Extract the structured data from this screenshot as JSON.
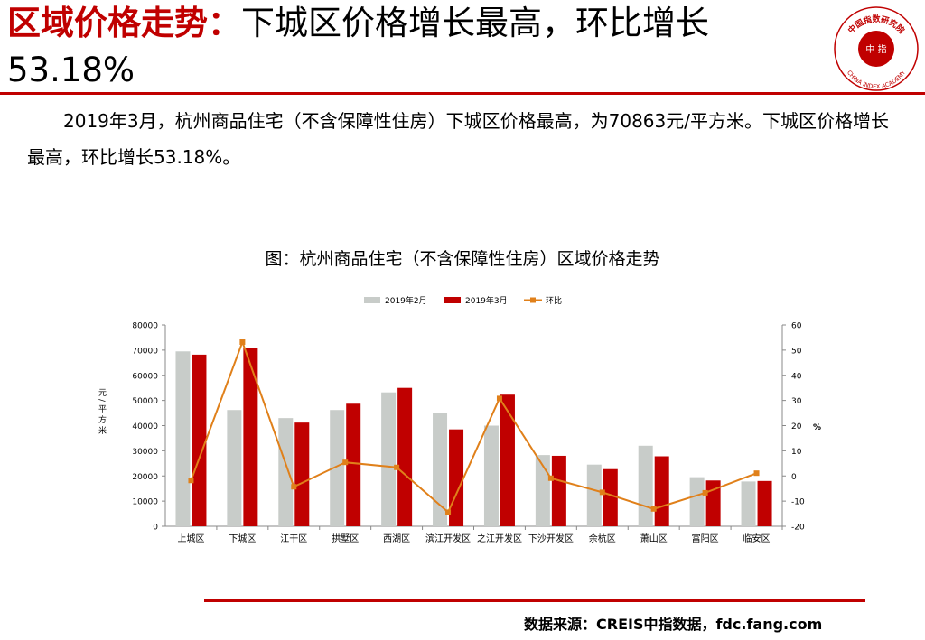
{
  "header": {
    "title_bold": "区域价格走势：",
    "title_rest": "下城区价格增长最高，环比增长",
    "title_line2": "53.18%"
  },
  "logo": {
    "text": "中国指数研究院",
    "center_text": "中 指",
    "english": "CHINA INDEX ACADEMY"
  },
  "summary": {
    "text": "2019年3月，杭州商品住宅（不含保障性住房）下城区价格最高，为70863元/平方米。下城区价格增长最高，环比增长53.18%。"
  },
  "source": {
    "text": "数据来源：CREIS中指数据，fdc.fang.com"
  },
  "colors": {
    "accent": "#c00000",
    "feb_bar": "#c8ccc9",
    "mar_bar": "#c00000",
    "mom_line": "#e0801a"
  },
  "chart_data": {
    "type": "bar",
    "title": "图：杭州商品住宅（不含保障性住房）区域价格走势",
    "categories": [
      "上城区",
      "下城区",
      "江干区",
      "拱墅区",
      "西湖区",
      "滨江开发区",
      "之江开发区",
      "下沙开发区",
      "余杭区",
      "萧山区",
      "富阳区",
      "临安区"
    ],
    "series": [
      {
        "name": "2019年2月",
        "type": "bar",
        "axis": "left",
        "values": [
          69500,
          46200,
          43000,
          46200,
          53200,
          45000,
          40000,
          28300,
          24500,
          32000,
          19500,
          17800
        ]
      },
      {
        "name": "2019年3月",
        "type": "bar",
        "axis": "left",
        "values": [
          68200,
          70863,
          41200,
          48700,
          55000,
          38500,
          52300,
          28000,
          22700,
          27800,
          18200,
          18000
        ]
      },
      {
        "name": "环比",
        "type": "line",
        "axis": "right",
        "values": [
          -1.8,
          53.18,
          -4.3,
          5.4,
          3.4,
          -14.4,
          30.8,
          -0.9,
          -6.5,
          -13.1,
          -6.7,
          1.1
        ]
      }
    ],
    "ylabel": "元/平方米",
    "y2label": "%",
    "ylim": [
      0,
      80000
    ],
    "yticks": [
      "0",
      "10000",
      "20000",
      "30000",
      "40000",
      "50000",
      "60000",
      "70000",
      "80000"
    ],
    "y2lim": [
      -20,
      60
    ],
    "y2ticks": [
      "-20",
      "-10",
      "0",
      "10",
      "20",
      "30",
      "40",
      "50",
      "60"
    ],
    "legend": "top",
    "grid": false
  }
}
